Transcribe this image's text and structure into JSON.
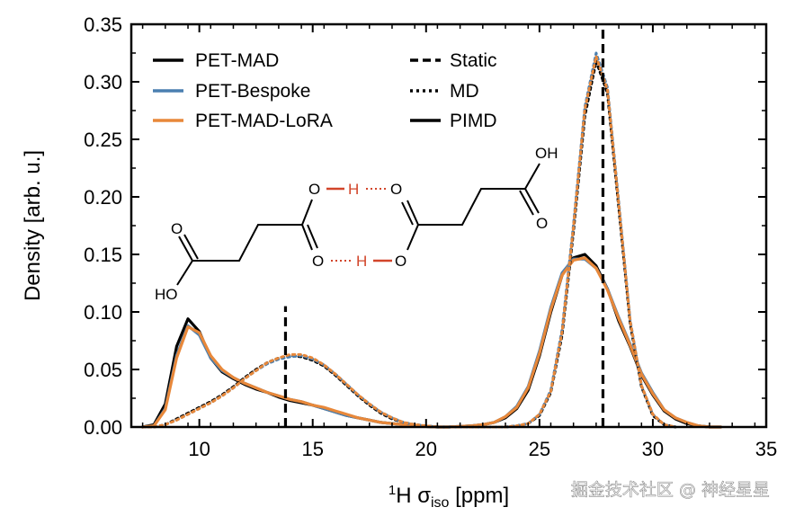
{
  "chart_data": {
    "type": "line",
    "xlabel_parts": {
      "sup": "1",
      "main": "H σ",
      "sub": "iso",
      "unit": " [ppm]"
    },
    "ylabel": "Density [arb. u.]",
    "xlim": [
      7,
      35
    ],
    "ylim": [
      0,
      0.35
    ],
    "xticks": [
      10,
      15,
      20,
      25,
      30,
      35
    ],
    "yticks": [
      0.0,
      0.05,
      0.1,
      0.15,
      0.2,
      0.25,
      0.3,
      0.35
    ],
    "xtick_labels": [
      "10",
      "15",
      "20",
      "25",
      "30",
      "35"
    ],
    "ytick_labels": [
      "0.00",
      "0.05",
      "0.10",
      "0.15",
      "0.20",
      "0.25",
      "0.30",
      "0.35"
    ],
    "grid": false,
    "legend_models": [
      {
        "name": "PET-MAD",
        "color": "#000000"
      },
      {
        "name": "PET-Bespoke",
        "color": "#4a7fb0"
      },
      {
        "name": "PET-MAD-LoRA",
        "color": "#e8883a"
      }
    ],
    "legend_methods": [
      {
        "name": "Static",
        "style": "dashed"
      },
      {
        "name": "MD",
        "style": "dotted"
      },
      {
        "name": "PIMD",
        "style": "solid"
      }
    ],
    "static_lines": [
      {
        "x": 13.8,
        "y": 0.105
      },
      {
        "x": 27.8,
        "y": 0.35
      }
    ],
    "series": [
      {
        "model": "PET-MAD",
        "method": "PIMD",
        "color": "#000000",
        "x": [
          7.5,
          8.0,
          8.5,
          9.0,
          9.5,
          10.0,
          10.5,
          11.0,
          11.5,
          12.0,
          12.5,
          13.0,
          13.5,
          14.0,
          14.5,
          15.0,
          15.5,
          16.0,
          16.5,
          17.0,
          17.5,
          18.0,
          18.5,
          19.0,
          19.5,
          20.0,
          20.5,
          21.0,
          21.5,
          22.0,
          22.5,
          23.0,
          23.5,
          24.0,
          24.5,
          25.0,
          25.5,
          26.0,
          26.5,
          27.0,
          27.5,
          28.0,
          28.5,
          29.0,
          29.5,
          30.0,
          30.5,
          31.0,
          31.5,
          32.0,
          32.5,
          33.0
        ],
        "y": [
          0.0,
          0.002,
          0.02,
          0.07,
          0.094,
          0.083,
          0.06,
          0.048,
          0.042,
          0.037,
          0.033,
          0.03,
          0.026,
          0.023,
          0.021,
          0.019,
          0.016,
          0.013,
          0.01,
          0.008,
          0.006,
          0.004,
          0.003,
          0.002,
          0.001,
          0.0005,
          0.0,
          0.0,
          0.0005,
          0.001,
          0.002,
          0.004,
          0.008,
          0.016,
          0.032,
          0.062,
          0.1,
          0.132,
          0.147,
          0.15,
          0.14,
          0.12,
          0.092,
          0.07,
          0.045,
          0.028,
          0.014,
          0.007,
          0.003,
          0.001,
          0.0,
          0.0
        ]
      },
      {
        "model": "PET-Bespoke",
        "method": "PIMD",
        "color": "#4a7fb0",
        "x": [
          7.5,
          8.0,
          8.5,
          9.0,
          9.5,
          10.0,
          10.5,
          11.0,
          11.5,
          12.0,
          12.5,
          13.0,
          13.5,
          14.0,
          14.5,
          15.0,
          15.5,
          16.0,
          16.5,
          17.0,
          17.5,
          18.0,
          18.5,
          19.0,
          19.5,
          20.0,
          20.5,
          21.0,
          21.5,
          22.0,
          22.5,
          23.0,
          23.5,
          24.0,
          24.5,
          25.0,
          25.5,
          26.0,
          26.5,
          27.0,
          27.5,
          28.0,
          28.5,
          29.0,
          29.5,
          30.0,
          30.5,
          31.0,
          31.5,
          32.0,
          32.5,
          33.0
        ],
        "y": [
          0.0,
          0.001,
          0.016,
          0.062,
          0.088,
          0.08,
          0.06,
          0.049,
          0.043,
          0.038,
          0.034,
          0.03,
          0.027,
          0.024,
          0.022,
          0.019,
          0.016,
          0.013,
          0.01,
          0.008,
          0.006,
          0.004,
          0.003,
          0.002,
          0.001,
          0.0005,
          0.0,
          0.0,
          0.0005,
          0.001,
          0.002,
          0.004,
          0.009,
          0.018,
          0.035,
          0.066,
          0.104,
          0.134,
          0.146,
          0.146,
          0.138,
          0.12,
          0.095,
          0.072,
          0.047,
          0.03,
          0.015,
          0.008,
          0.004,
          0.001,
          0.0,
          0.0
        ]
      },
      {
        "model": "PET-MAD-LoRA",
        "method": "PIMD",
        "color": "#e8883a",
        "x": [
          7.5,
          8.0,
          8.5,
          9.0,
          9.5,
          10.0,
          10.5,
          11.0,
          11.5,
          12.0,
          12.5,
          13.0,
          13.5,
          14.0,
          14.5,
          15.0,
          15.5,
          16.0,
          16.5,
          17.0,
          17.5,
          18.0,
          18.5,
          19.0,
          19.5,
          20.0,
          20.5,
          21.0,
          21.5,
          22.0,
          22.5,
          23.0,
          23.5,
          24.0,
          24.5,
          25.0,
          25.5,
          26.0,
          26.5,
          27.0,
          27.5,
          28.0,
          28.5,
          29.0,
          29.5,
          30.0,
          30.5,
          31.0,
          31.5,
          32.0,
          32.5,
          33.0
        ],
        "y": [
          0.0,
          0.001,
          0.015,
          0.06,
          0.087,
          0.082,
          0.062,
          0.05,
          0.043,
          0.038,
          0.034,
          0.03,
          0.027,
          0.024,
          0.022,
          0.019,
          0.017,
          0.014,
          0.011,
          0.008,
          0.006,
          0.004,
          0.003,
          0.002,
          0.001,
          0.0005,
          0.0,
          0.0,
          0.0005,
          0.001,
          0.002,
          0.004,
          0.009,
          0.017,
          0.034,
          0.064,
          0.102,
          0.132,
          0.145,
          0.147,
          0.138,
          0.119,
          0.094,
          0.071,
          0.046,
          0.029,
          0.015,
          0.008,
          0.004,
          0.001,
          0.0,
          0.0
        ]
      },
      {
        "model": "PET-MAD",
        "method": "MD",
        "color": "#000000",
        "x": [
          7.5,
          8.0,
          8.5,
          9.0,
          9.5,
          10.0,
          10.5,
          11.0,
          11.5,
          12.0,
          12.5,
          13.0,
          13.5,
          14.0,
          14.5,
          15.0,
          15.5,
          16.0,
          16.5,
          17.0,
          17.5,
          18.0,
          18.5,
          19.0,
          19.5,
          20.0,
          20.5,
          21.0,
          21.5,
          22.0,
          22.5,
          23.0,
          23.5,
          24.0,
          24.5,
          25.0,
          25.5,
          26.0,
          26.5,
          27.0,
          27.5,
          28.0,
          28.5,
          29.0,
          29.5,
          30.0,
          30.5,
          31.0
        ],
        "y": [
          0.0,
          0.0,
          0.002,
          0.007,
          0.012,
          0.017,
          0.022,
          0.028,
          0.035,
          0.043,
          0.05,
          0.056,
          0.06,
          0.062,
          0.061,
          0.058,
          0.053,
          0.045,
          0.036,
          0.027,
          0.019,
          0.012,
          0.007,
          0.004,
          0.002,
          0.001,
          0.0,
          0.0,
          0.0,
          0.0,
          0.0,
          0.0,
          0.0,
          0.001,
          0.003,
          0.01,
          0.03,
          0.08,
          0.17,
          0.27,
          0.318,
          0.29,
          0.19,
          0.09,
          0.035,
          0.01,
          0.002,
          0.0
        ]
      },
      {
        "model": "PET-Bespoke",
        "method": "MD",
        "color": "#4a7fb0",
        "x": [
          7.5,
          8.0,
          8.5,
          9.0,
          9.5,
          10.0,
          10.5,
          11.0,
          11.5,
          12.0,
          12.5,
          13.0,
          13.5,
          14.0,
          14.5,
          15.0,
          15.5,
          16.0,
          16.5,
          17.0,
          17.5,
          18.0,
          18.5,
          19.0,
          19.5,
          20.0,
          20.5,
          21.0,
          21.5,
          22.0,
          22.5,
          23.0,
          23.5,
          24.0,
          24.5,
          25.0,
          25.5,
          26.0,
          26.5,
          27.0,
          27.5,
          28.0,
          28.5,
          29.0,
          29.5,
          30.0,
          30.5,
          31.0
        ],
        "y": [
          0.0,
          0.0,
          0.002,
          0.006,
          0.011,
          0.016,
          0.021,
          0.027,
          0.034,
          0.042,
          0.049,
          0.055,
          0.059,
          0.061,
          0.062,
          0.059,
          0.054,
          0.046,
          0.037,
          0.028,
          0.02,
          0.013,
          0.008,
          0.004,
          0.002,
          0.001,
          0.0,
          0.0,
          0.0,
          0.0,
          0.0,
          0.0,
          0.0,
          0.001,
          0.003,
          0.011,
          0.032,
          0.085,
          0.176,
          0.278,
          0.325,
          0.295,
          0.195,
          0.093,
          0.036,
          0.011,
          0.002,
          0.0
        ]
      },
      {
        "model": "PET-MAD-LoRA",
        "method": "MD",
        "color": "#e8883a",
        "x": [
          7.5,
          8.0,
          8.5,
          9.0,
          9.5,
          10.0,
          10.5,
          11.0,
          11.5,
          12.0,
          12.5,
          13.0,
          13.5,
          14.0,
          14.5,
          15.0,
          15.5,
          16.0,
          16.5,
          17.0,
          17.5,
          18.0,
          18.5,
          19.0,
          19.5,
          20.0,
          20.5,
          21.0,
          21.5,
          22.0,
          22.5,
          23.0,
          23.5,
          24.0,
          24.5,
          25.0,
          25.5,
          26.0,
          26.5,
          27.0,
          27.5,
          28.0,
          28.5,
          29.0,
          29.5,
          30.0,
          30.5,
          31.0
        ],
        "y": [
          0.0,
          0.0,
          0.002,
          0.006,
          0.011,
          0.016,
          0.021,
          0.027,
          0.034,
          0.042,
          0.049,
          0.056,
          0.06,
          0.063,
          0.063,
          0.06,
          0.054,
          0.046,
          0.037,
          0.028,
          0.02,
          0.013,
          0.008,
          0.004,
          0.002,
          0.001,
          0.0,
          0.0,
          0.0,
          0.0,
          0.0,
          0.0,
          0.0,
          0.001,
          0.003,
          0.011,
          0.031,
          0.083,
          0.174,
          0.276,
          0.322,
          0.293,
          0.193,
          0.092,
          0.036,
          0.011,
          0.002,
          0.0
        ]
      }
    ]
  },
  "molecule": {
    "left_oh": "HO",
    "left_o": "O",
    "right_oh": "OH",
    "right_o": "O",
    "bridge_o_top_left": "O",
    "bridge_h_top": "H",
    "bridge_o_top_right": "O",
    "bridge_o_bottom_left": "O",
    "bridge_h_bottom": "H",
    "bridge_o_bottom_right": "O"
  },
  "watermark": "掘金技术社区 @ 神经星星"
}
